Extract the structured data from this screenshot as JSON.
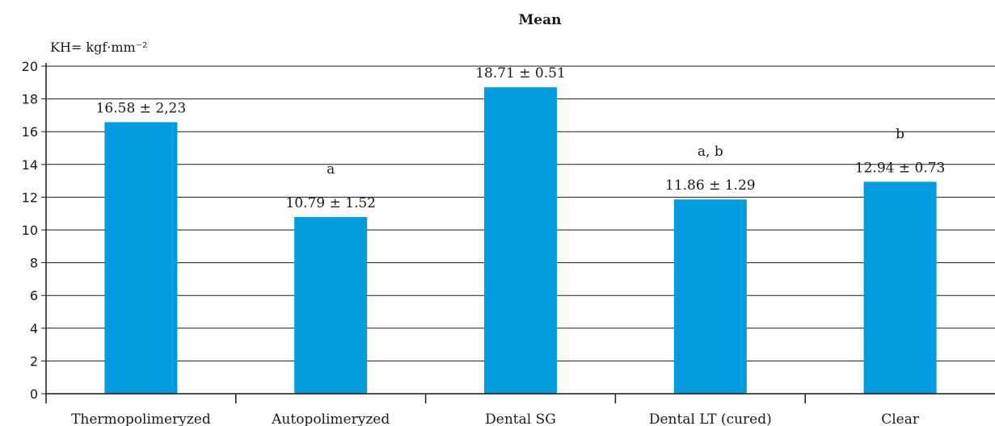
{
  "chart_data": {
    "type": "bar",
    "title": "Mean",
    "ylabel": "KH= kgf·mm⁻²",
    "xlabel": "",
    "ylim": [
      0,
      20
    ],
    "yticks": [
      0,
      2,
      4,
      6,
      8,
      10,
      12,
      14,
      16,
      18,
      20
    ],
    "grid": true,
    "categories": [
      "Thermopolimeryzed",
      "Autopolimeryzed",
      "Dental SG",
      "Dental LT (cured)",
      "Clear"
    ],
    "values": [
      16.58,
      10.79,
      18.71,
      11.86,
      12.94
    ],
    "data_labels": [
      "16.58 ± 2,23",
      "10.79 ± 1.52",
      "18.71 ± 0.51",
      "11.86 ± 1.29",
      "12.94 ± 0.73"
    ],
    "significance_labels": [
      "",
      "a",
      "",
      "a, b",
      "b"
    ],
    "bar_color": "#039be0"
  }
}
